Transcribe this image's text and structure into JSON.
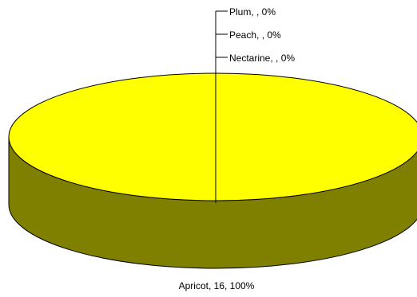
{
  "chart_data": {
    "type": "pie",
    "style": "3d",
    "title": "",
    "slices": [
      {
        "name": "Apricot",
        "value": 16,
        "label": "Apricot, 16, 100%"
      },
      {
        "name": "Nectarine",
        "value": 0,
        "label": "Nectarine, , 0%"
      },
      {
        "name": "Peach",
        "value": 0,
        "label": "Peach, , 0%"
      },
      {
        "name": "Plum",
        "value": 0,
        "label": "Plum, , 0%"
      }
    ],
    "legend": "none",
    "colors": {
      "top": "#ffff00",
      "side": "#808000",
      "outline": "#000000",
      "leader": "#000000"
    }
  }
}
